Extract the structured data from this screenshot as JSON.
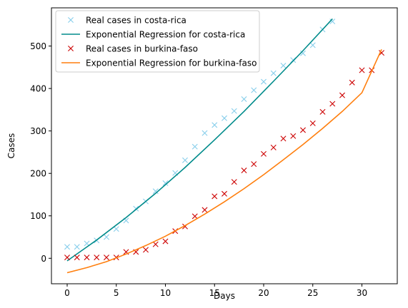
{
  "chart_data": {
    "type": "line",
    "xlabel": "Days",
    "ylabel": "Cases",
    "xlim": [
      -1.6,
      33.6
    ],
    "ylim": [
      -60,
      590
    ],
    "xticks": [
      0,
      5,
      10,
      15,
      20,
      25,
      30
    ],
    "yticks": [
      0,
      100,
      200,
      300,
      400,
      500
    ],
    "grid": false,
    "legend_position": "top-left",
    "series": [
      {
        "name": "Real cases in costa-rica",
        "kind": "scatter",
        "marker": "x",
        "color": "#87ceeb",
        "x": [
          0,
          1,
          2,
          3,
          4,
          5,
          6,
          7,
          8,
          9,
          10,
          11,
          12,
          13,
          14,
          15,
          16,
          17,
          18,
          19,
          20,
          21,
          22,
          23,
          24,
          25,
          26,
          27
        ],
        "y": [
          27,
          27,
          35,
          42,
          50,
          69,
          89,
          117,
          134,
          158,
          177,
          201,
          231,
          263,
          295,
          314,
          330,
          347,
          375,
          396,
          416,
          436,
          454,
          467,
          483,
          502,
          539,
          558
        ]
      },
      {
        "name": "Exponential Regression for costa-rica",
        "kind": "line",
        "color": "#008b8b",
        "x": [
          0,
          3,
          6,
          9,
          12,
          15,
          18,
          21,
          24,
          27
        ],
        "y": [
          -6,
          43,
          96,
          153,
          214,
          279,
          346,
          417,
          489,
          564
        ]
      },
      {
        "name": "Real cases in burkina-faso",
        "kind": "scatter",
        "marker": "x",
        "color": "#cc0000",
        "x": [
          0,
          1,
          2,
          3,
          4,
          5,
          6,
          7,
          8,
          9,
          10,
          11,
          12,
          13,
          14,
          15,
          16,
          17,
          18,
          19,
          20,
          21,
          22,
          23,
          24,
          25,
          26,
          27,
          28,
          29,
          30,
          31,
          32
        ],
        "y": [
          2,
          2,
          2,
          2,
          2,
          2,
          15,
          15,
          20,
          33,
          40,
          64,
          75,
          99,
          114,
          146,
          152,
          180,
          207,
          222,
          246,
          261,
          282,
          288,
          302,
          318,
          345,
          364,
          384,
          414,
          443,
          443,
          484
        ]
      },
      {
        "name": "Exponential Regression for burkina-faso",
        "kind": "line",
        "color": "#ff7f0e",
        "x": [
          0,
          2,
          4,
          6,
          8,
          10,
          12,
          14,
          16,
          18,
          20,
          22,
          24,
          26,
          28,
          30,
          32
        ],
        "y": [
          -34,
          -22,
          -8,
          10,
          30,
          52,
          77,
          104,
          133,
          164,
          197,
          232,
          268,
          306,
          346,
          390,
          492
        ]
      }
    ]
  }
}
